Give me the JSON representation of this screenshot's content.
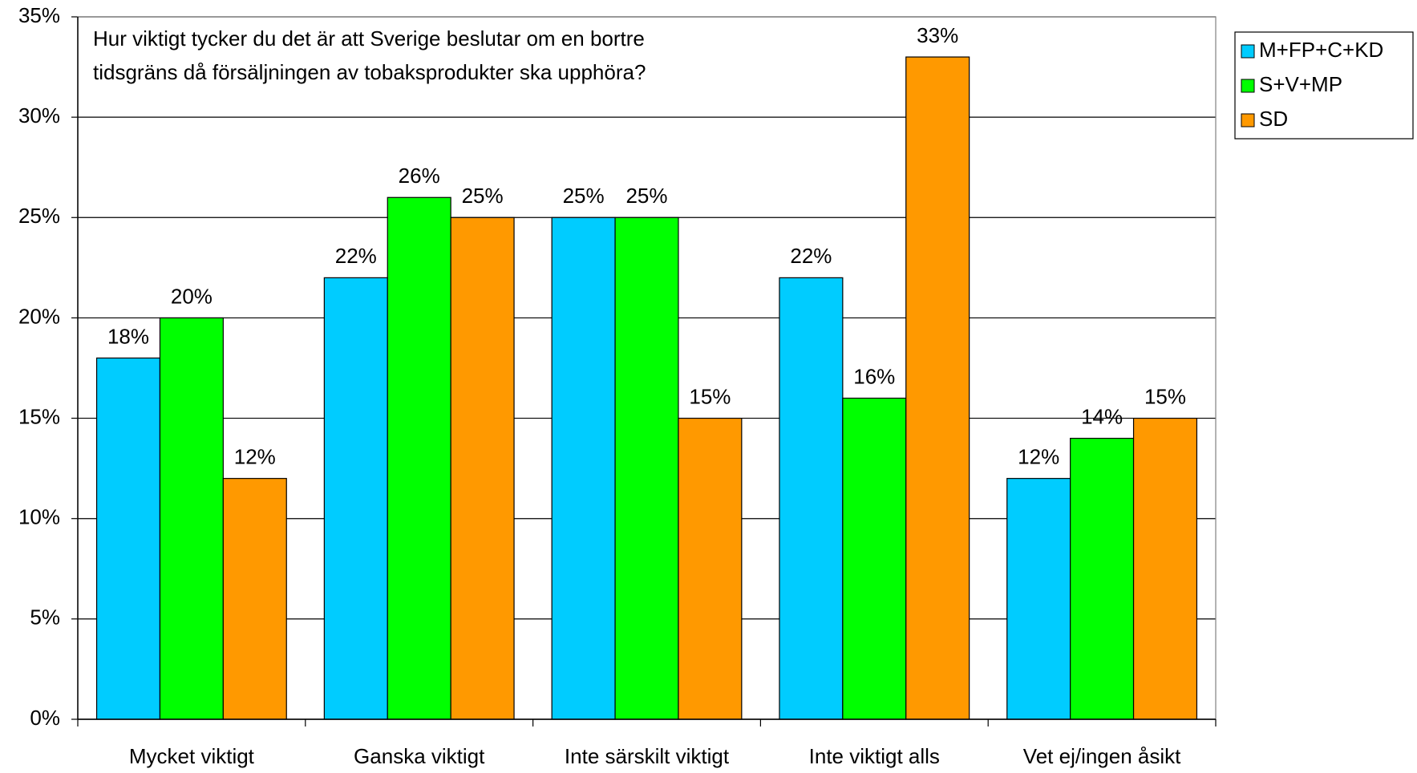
{
  "chart_data": {
    "type": "bar",
    "title": [
      "Hur viktigt tycker du det är att Sverige beslutar om en bortre",
      "tidsgräns då försäljningen av tobaksprodukter ska upphöra?"
    ],
    "categories": [
      "Mycket viktigt",
      "Ganska viktigt",
      "Inte särskilt viktigt",
      "Inte viktigt alls",
      "Vet ej/ingen åsikt"
    ],
    "series": [
      {
        "name": "M+FP+C+KD",
        "color": "#00ccff",
        "values": [
          18,
          22,
          25,
          22,
          12
        ],
        "value_labels": [
          "18%",
          "22%",
          "25%",
          "22%",
          "12%"
        ]
      },
      {
        "name": "S+V+MP",
        "color": "#00ff00",
        "values": [
          20,
          26,
          25,
          16,
          14
        ],
        "value_labels": [
          "20%",
          "26%",
          "25%",
          "16%",
          "14%"
        ]
      },
      {
        "name": "SD",
        "color": "#ff9900",
        "values": [
          12,
          25,
          15,
          33,
          15
        ],
        "value_labels": [
          "12%",
          "25%",
          "15%",
          "33%",
          "15%"
        ]
      }
    ],
    "ylim": [
      0,
      35
    ],
    "yticks": [
      {
        "value": 0,
        "label": "0%"
      },
      {
        "value": 5,
        "label": "5%"
      },
      {
        "value": 10,
        "label": "10%"
      },
      {
        "value": 15,
        "label": "15%"
      },
      {
        "value": 20,
        "label": "20%"
      },
      {
        "value": 25,
        "label": "25%"
      },
      {
        "value": 30,
        "label": "30%"
      },
      {
        "value": 35,
        "label": "35%"
      }
    ],
    "grid": true,
    "legend": "top-right"
  }
}
